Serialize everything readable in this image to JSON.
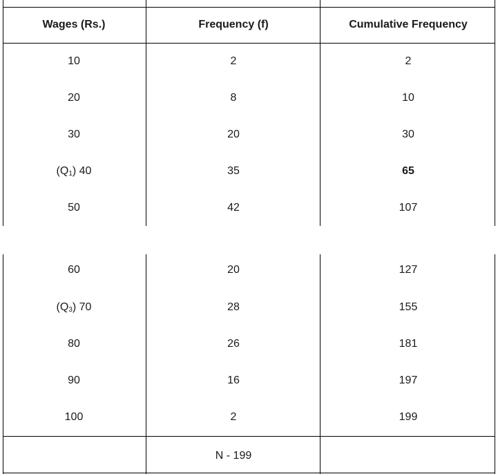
{
  "table": {
    "headers": [
      "Wages (Rs.)",
      "Frequency (f)",
      "Cumulative Frequency"
    ],
    "top_rows": [
      {
        "wage_prefix": "",
        "wage_sub": "",
        "wage_value": "10",
        "frequency": "2",
        "cumulative": "2",
        "cumulative_bold": false
      },
      {
        "wage_prefix": "",
        "wage_sub": "",
        "wage_value": "20",
        "frequency": "8",
        "cumulative": "10",
        "cumulative_bold": false
      },
      {
        "wage_prefix": "",
        "wage_sub": "",
        "wage_value": "30",
        "frequency": "20",
        "cumulative": "30",
        "cumulative_bold": false
      },
      {
        "wage_prefix": "(Q",
        "wage_sub": "1",
        "wage_value": ") 40",
        "frequency": "35",
        "cumulative": "65",
        "cumulative_bold": true
      },
      {
        "wage_prefix": "",
        "wage_sub": "",
        "wage_value": "50",
        "frequency": "42",
        "cumulative": "107",
        "cumulative_bold": false
      }
    ],
    "bottom_rows": [
      {
        "wage_prefix": "",
        "wage_sub": "",
        "wage_value": "60",
        "frequency": "20",
        "cumulative": "127",
        "cumulative_bold": false
      },
      {
        "wage_prefix": "(Q",
        "wage_sub": "3",
        "wage_value": ") 70",
        "frequency": "28",
        "cumulative": "155",
        "cumulative_bold": false
      },
      {
        "wage_prefix": "",
        "wage_sub": "",
        "wage_value": "80",
        "frequency": "26",
        "cumulative": "181",
        "cumulative_bold": false
      },
      {
        "wage_prefix": "",
        "wage_sub": "",
        "wage_value": "90",
        "frequency": "16",
        "cumulative": "197",
        "cumulative_bold": false
      },
      {
        "wage_prefix": "",
        "wage_sub": "",
        "wage_value": "100",
        "frequency": "2",
        "cumulative": "199",
        "cumulative_bold": false
      }
    ],
    "total": {
      "wages": "",
      "frequency": "N - 199",
      "cumulative": ""
    }
  }
}
